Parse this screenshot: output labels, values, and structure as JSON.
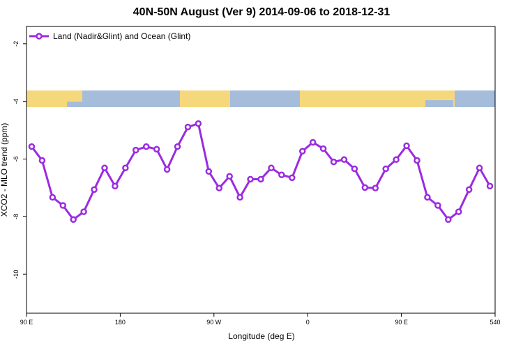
{
  "chart_data": {
    "type": "line",
    "title": "40N-50N August (Ver 9)   2014-09-06 to 2018-12-31",
    "x_label": "Longitude (deg E)",
    "y_label": "XCO2 - MLO trend (ppm)",
    "x": [
      95,
      105,
      115,
      125,
      135,
      145,
      155,
      165,
      175,
      185,
      195,
      205,
      215,
      225,
      235,
      245,
      255,
      265,
      275,
      285,
      295,
      305,
      315,
      325,
      335,
      345,
      355,
      365,
      375,
      385,
      395,
      405,
      415,
      425,
      435,
      445,
      455,
      465,
      475,
      485,
      495,
      505,
      515,
      525,
      535
    ],
    "series": [
      {
        "name": "Land (Nadir&Glint) and Ocean (Glint)",
        "color": "#9b2be2",
        "values": [
          -5.57,
          -6.05,
          -7.33,
          -7.61,
          -8.1,
          -7.83,
          -7.06,
          -6.31,
          -6.94,
          -6.31,
          -5.69,
          -5.57,
          -5.66,
          -6.36,
          -5.57,
          -4.89,
          -4.77,
          -6.43,
          -7.01,
          -6.6,
          -7.33,
          -6.7,
          -6.7,
          -6.31,
          -6.55,
          -6.65,
          -5.73,
          -5.42,
          -5.64,
          -6.1,
          -6.02,
          -6.34,
          -6.99,
          -7.01,
          -6.34,
          -6.02,
          -5.54,
          -6.05,
          -7.33,
          -7.61,
          -8.1,
          -7.83,
          -7.06,
          -6.31,
          -6.94
        ]
      }
    ],
    "xlim": [
      90,
      540
    ],
    "xticks": [
      {
        "value": 90,
        "label": "90 E"
      },
      180,
      {
        "value": 270,
        "label": "90 W"
      },
      {
        "value": 360,
        "label": "0"
      },
      {
        "value": 450,
        "label": "90 E"
      },
      540
    ],
    "ylim": [
      -11.35,
      -1.4
    ],
    "yticks": [
      -2,
      -4,
      -6,
      -8,
      -10
    ],
    "legend": "top-left"
  }
}
